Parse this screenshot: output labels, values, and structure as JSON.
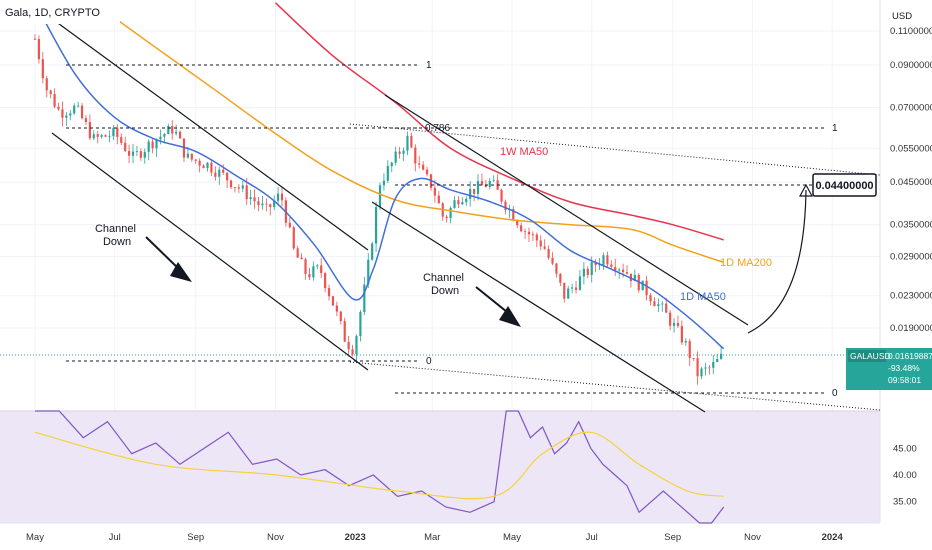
{
  "header": {
    "title": "Gala, 1D, CRYPTO"
  },
  "currency": "USD",
  "price_tag": {
    "symbol": "GALAUSD",
    "price": "0.01619887",
    "change": "-93.48%",
    "countdown": "09:58:01"
  },
  "target_box": "0.04400000",
  "colors": {
    "ma1d50": "#3f6fd8",
    "ma1d200": "#f2a21a",
    "ma1w50": "#e8344a",
    "rsi": "#7e57c2",
    "rsi_ma": "#f5d33a",
    "up": "#26a69a",
    "down": "#ef5350",
    "price_tag": "#26a69a"
  },
  "annotations": {
    "channel_1": [
      "Channel",
      "Down"
    ],
    "channel_2": [
      "Channel",
      "Down"
    ],
    "ma1w50": "1W MA50",
    "ma1d200": "1D MA200",
    "ma1d50": "1D MA50"
  },
  "fib_left": {
    "one": "1",
    "zero": "0"
  },
  "fib_right": {
    "one": "1",
    "f786": "0.786",
    "zero": "0"
  },
  "chart_data": [
    {
      "type": "candlestick",
      "log_scale": true,
      "x_ticks": [
        "May",
        "Jul",
        "Sep",
        "Nov",
        "2023",
        "Mar",
        "May",
        "Jul",
        "Sep",
        "Nov",
        "2024"
      ],
      "y_ticks": [
        0.11,
        0.09,
        0.07,
        0.055,
        0.045,
        0.035,
        0.029,
        0.023,
        0.019
      ],
      "y_tick_labels": [
        "0.11000000",
        "0.09000000",
        "0.07000000",
        "0.05500000",
        "0.04500000",
        "0.03500000",
        "0.02900000",
        "0.02300000",
        "0.01900000"
      ],
      "ylim": [
        0.0125,
        0.125
      ],
      "close_series": [
        [
          "2022-05-01",
          0.105
        ],
        [
          "2022-05-10",
          0.078
        ],
        [
          "2022-05-20",
          0.068
        ],
        [
          "2022-06-01",
          0.07
        ],
        [
          "2022-06-15",
          0.058
        ],
        [
          "2022-07-01",
          0.06
        ],
        [
          "2022-07-15",
          0.052
        ],
        [
          "2022-08-01",
          0.058
        ],
        [
          "2022-08-15",
          0.062
        ],
        [
          "2022-08-25",
          0.052
        ],
        [
          "2022-09-10",
          0.05
        ],
        [
          "2022-09-25",
          0.046
        ],
        [
          "2022-10-10",
          0.042
        ],
        [
          "2022-10-25",
          0.038
        ],
        [
          "2022-11-05",
          0.042
        ],
        [
          "2022-11-15",
          0.03
        ],
        [
          "2022-11-25",
          0.026
        ],
        [
          "2022-12-05",
          0.027
        ],
        [
          "2022-12-15",
          0.022
        ],
        [
          "2022-12-25",
          0.0175
        ],
        [
          "2022-12-31",
          0.0168
        ],
        [
          "2023-01-10",
          0.026
        ],
        [
          "2023-01-20",
          0.045
        ],
        [
          "2023-02-01",
          0.052
        ],
        [
          "2023-02-10",
          0.058
        ],
        [
          "2023-02-20",
          0.048
        ],
        [
          "2023-03-01",
          0.044
        ],
        [
          "2023-03-10",
          0.036
        ],
        [
          "2023-03-20",
          0.041
        ],
        [
          "2023-04-01",
          0.043
        ],
        [
          "2023-04-15",
          0.045
        ],
        [
          "2023-04-25",
          0.04
        ],
        [
          "2023-05-10",
          0.034
        ],
        [
          "2023-05-25",
          0.031
        ],
        [
          "2023-06-10",
          0.023
        ],
        [
          "2023-06-25",
          0.026
        ],
        [
          "2023-07-10",
          0.029
        ],
        [
          "2023-07-25",
          0.027
        ],
        [
          "2023-08-10",
          0.024
        ],
        [
          "2023-08-25",
          0.021
        ],
        [
          "2023-09-10",
          0.0175
        ],
        [
          "2023-09-20",
          0.0145
        ],
        [
          "2023-09-30",
          0.015
        ],
        [
          "2023-10-10",
          0.0162
        ]
      ],
      "ma_1d50": [
        [
          "2022-05-01",
          0.13
        ],
        [
          "2022-06-01",
          0.085
        ],
        [
          "2022-07-01",
          0.066
        ],
        [
          "2022-08-01",
          0.058
        ],
        [
          "2022-09-01",
          0.054
        ],
        [
          "2022-10-01",
          0.047
        ],
        [
          "2022-11-01",
          0.04
        ],
        [
          "2022-12-01",
          0.031
        ],
        [
          "2022-12-31",
          0.0225
        ],
        [
          "2023-01-15",
          0.027
        ],
        [
          "2023-02-01",
          0.041
        ],
        [
          "2023-02-20",
          0.046
        ],
        [
          "2023-03-15",
          0.043
        ],
        [
          "2023-04-15",
          0.04
        ],
        [
          "2023-05-15",
          0.036
        ],
        [
          "2023-06-15",
          0.03
        ],
        [
          "2023-07-15",
          0.027
        ],
        [
          "2023-08-15",
          0.024
        ],
        [
          "2023-09-15",
          0.02
        ],
        [
          "2023-10-10",
          0.0168
        ]
      ],
      "ma_1d200": [
        [
          "2022-06-15",
          0.13
        ],
        [
          "2022-08-01",
          0.1
        ],
        [
          "2022-09-15",
          0.078
        ],
        [
          "2022-11-01",
          0.06
        ],
        [
          "2022-12-15",
          0.048
        ],
        [
          "2023-02-01",
          0.0405
        ],
        [
          "2023-03-15",
          0.038
        ],
        [
          "2023-05-01",
          0.036
        ],
        [
          "2023-06-15",
          0.035
        ],
        [
          "2023-08-01",
          0.034
        ],
        [
          "2023-09-01",
          0.031
        ],
        [
          "2023-10-10",
          0.028
        ]
      ],
      "ma_1w50": [
        [
          "2022-11-01",
          0.13
        ],
        [
          "2022-12-15",
          0.095
        ],
        [
          "2023-02-01",
          0.072
        ],
        [
          "2023-03-15",
          0.055
        ],
        [
          "2023-05-01",
          0.046
        ],
        [
          "2023-06-15",
          0.04
        ],
        [
          "2023-08-01",
          0.037
        ],
        [
          "2023-09-01",
          0.035
        ],
        [
          "2023-10-10",
          0.032
        ]
      ],
      "target_price": 0.044
    },
    {
      "type": "line",
      "series": [
        {
          "values": [
            [
              0,
              55
            ],
            [
              4,
              53
            ],
            [
              8,
              47
            ],
            [
              12,
              50
            ],
            [
              16,
              44
            ],
            [
              20,
              46
            ],
            [
              24,
              42
            ],
            [
              28,
              45
            ],
            [
              32,
              48
            ],
            [
              36,
              42
            ],
            [
              40,
              43
            ],
            [
              44,
              40
            ],
            [
              48,
              41
            ],
            [
              52,
              38
            ],
            [
              56,
              40
            ],
            [
              60,
              36
            ],
            [
              64,
              37
            ],
            [
              68,
              34
            ],
            [
              72,
              33
            ],
            [
              76,
              35
            ],
            [
              78,
              55
            ],
            [
              80,
              52
            ],
            [
              82,
              47
            ],
            [
              84,
              49
            ],
            [
              86,
              44
            ],
            [
              88,
              46
            ],
            [
              90,
              50
            ],
            [
              92,
              45
            ],
            [
              94,
              42
            ],
            [
              96,
              40
            ],
            [
              98,
              38
            ],
            [
              100,
              33
            ],
            [
              102,
              35
            ],
            [
              104,
              37
            ],
            [
              106,
              35
            ],
            [
              108,
              33
            ],
            [
              110,
              30
            ],
            [
              112,
              31
            ],
            [
              114,
              34
            ]
          ]
        },
        {
          "values": [
            [
              0,
              48
            ],
            [
              20,
              42
            ],
            [
              40,
              40
            ],
            [
              60,
              37
            ],
            [
              76,
              36
            ],
            [
              84,
              44
            ],
            [
              92,
              48
            ],
            [
              100,
              42
            ],
            [
              108,
              37
            ],
            [
              114,
              36
            ]
          ]
        }
      ],
      "y_ticks": [
        45,
        40,
        35
      ],
      "y_tick_labels": [
        "45.00",
        "40.00",
        "35.00"
      ],
      "ylim": [
        31,
        52
      ]
    }
  ]
}
